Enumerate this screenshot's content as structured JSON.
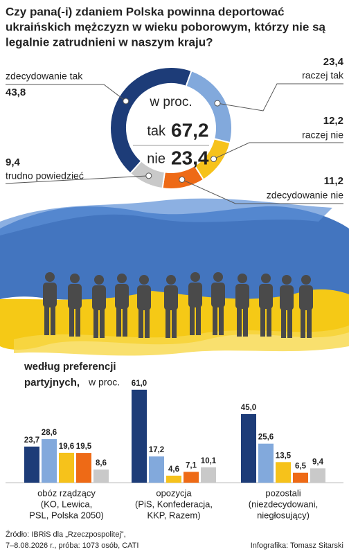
{
  "title": [
    "Czy pana(-i) zdaniem Polska powinna deportować",
    "ukraińskich mężczyzn w wieku poborowym, którzy nie są",
    "legalnie zatrudnieni w naszym kraju?"
  ],
  "chart_data": [
    {
      "type": "donut",
      "categories": [
        "zdecydowanie tak",
        "raczej tak",
        "raczej nie",
        "zdecydowanie nie",
        "trudno powiedzieć"
      ],
      "values": [
        43.8,
        23.4,
        12.2,
        11.2,
        9.4
      ],
      "value_labels": [
        "43,8",
        "23,4",
        "12,2",
        "11,2",
        "9,4"
      ],
      "colors": [
        "#1d3c78",
        "#82a9dc",
        "#f6c21b",
        "#ee6a16",
        "#c9c9c9"
      ],
      "center": {
        "unit": "w proc.",
        "summary": [
          {
            "label": "tak",
            "value": 67.2,
            "value_label": "67,2",
            "color": "#1d3c78"
          },
          {
            "label": "nie",
            "value": 23.4,
            "value_label": "23,4",
            "color": "#e8621d"
          }
        ]
      }
    },
    {
      "type": "bar",
      "title": [
        "według preferencji",
        "partyjnych,"
      ],
      "subtitle": "w proc.",
      "categories": [
        "obóz rządzący",
        "opozycja",
        "pozostali"
      ],
      "category_notes": [
        [
          "(KO, Lewica,",
          "PSL, Polska 2050)"
        ],
        [
          "(PiS, Konfederacja,",
          "KKP, Razem)"
        ],
        [
          "(niezdecydowani,",
          "niegłosujący)"
        ]
      ],
      "series": [
        {
          "color": "#1d3c78",
          "values": [
            23.7,
            61.0,
            45.0
          ],
          "value_labels": [
            "23,7",
            "61,0",
            "45,0"
          ]
        },
        {
          "color": "#82a9dc",
          "values": [
            28.6,
            17.2,
            25.6
          ],
          "value_labels": [
            "28,6",
            "17,2",
            "25,6"
          ]
        },
        {
          "color": "#f6c21b",
          "values": [
            19.6,
            4.6,
            13.5
          ],
          "value_labels": [
            "19,6",
            "4,6",
            "13,5"
          ]
        },
        {
          "color": "#ee6a16",
          "values": [
            19.5,
            7.1,
            6.5
          ],
          "value_labels": [
            "19,5",
            "7,1",
            "6,5"
          ]
        },
        {
          "color": "#c9c9c9",
          "values": [
            8.6,
            10.1,
            9.4
          ],
          "value_labels": [
            "8,6",
            "10,1",
            "9,4"
          ]
        }
      ]
    }
  ],
  "source": [
    "Źródło: IBRiS dla „Rzeczpospolitej”,",
    "7–8.08.2026 r., próba: 1073 osób, CATI"
  ],
  "credit": "Infografika: Tomasz Sitarski"
}
